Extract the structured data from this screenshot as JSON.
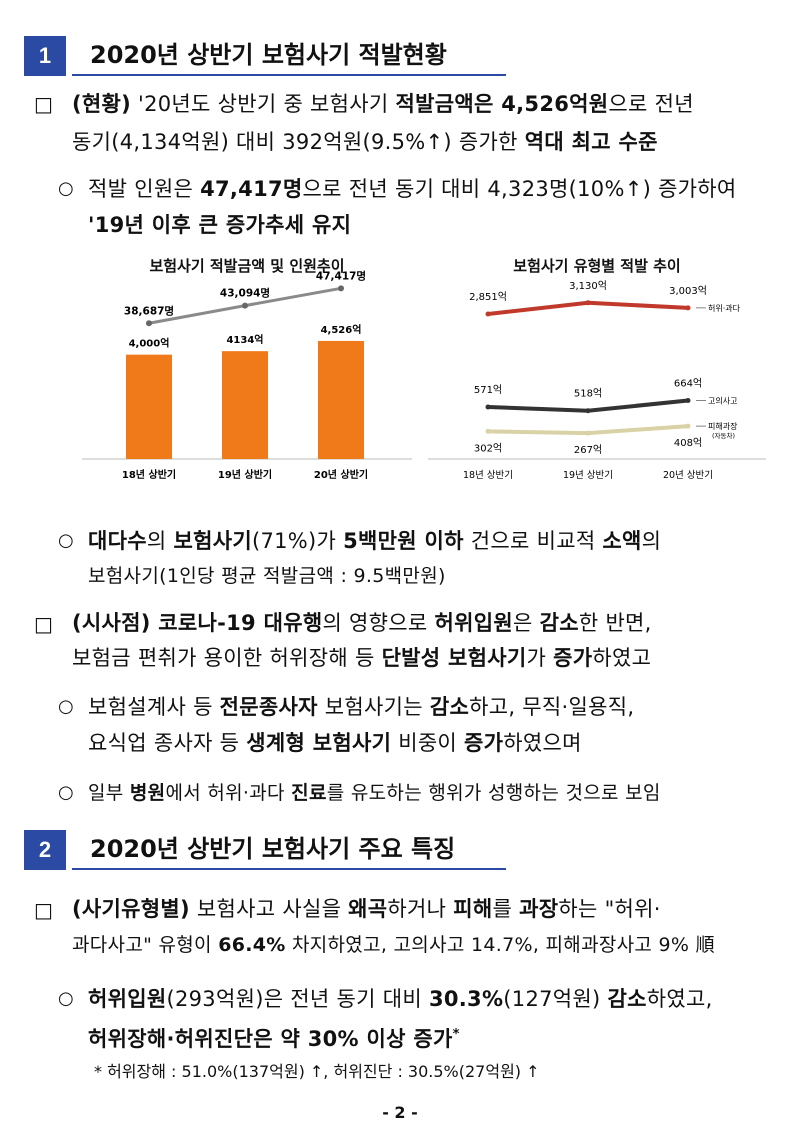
{
  "section1": {
    "number": "1",
    "title": "2020년 상반기 보험사기 적발현황",
    "p1_line1_lead": "(현황)",
    "p1_line1_a": " '20년도 상반기 중 보험사기 ",
    "p1_line1_b": "적발금액은 4,526억원",
    "p1_line1_c": "으로 전년",
    "p1_line2_a": "동기(4,134억원) 대비 392억원(9.5%↑) 증가한 ",
    "p1_line2_b": "역대 최고 수준",
    "b1_line1_a": "적발 인원은 ",
    "b1_line1_b": "47,417명",
    "b1_line1_c": "으로 전년 동기 대비 4,323명(10%↑) 증가하여",
    "b1_line2": "'19년 이후 큰 증가추세 유지",
    "b2_line1_a": "대다수",
    "b2_line1_b": "의 ",
    "b2_line1_c": "보험사기",
    "b2_line1_d": "(71%)가 ",
    "b2_line1_e": "5백만원 이하",
    "b2_line1_f": " 건으로 비교적 ",
    "b2_line1_g": "소액",
    "b2_line1_h": "의",
    "b2_line2": "보험사기(1인당 평균 적발금액 : 9.5백만원)",
    "p2_line1_lead": "(시사점)",
    "p2_line1_a": " 코로나-19 대유행",
    "p2_line1_b": "의 영향으로 ",
    "p2_line1_c": "허위입원",
    "p2_line1_d": "은 ",
    "p2_line1_e": "감소",
    "p2_line1_f": "한 반면,",
    "p2_line2_a": "보험금 편취가 용이한 허위장해 등 ",
    "p2_line2_b": "단발성 보험사기",
    "p2_line2_c": "가 ",
    "p2_line2_d": "증가",
    "p2_line2_e": "하였고",
    "b3_line1_a": "보험설계사 등 ",
    "b3_line1_b": "전문종사자",
    "b3_line1_c": " 보험사기는 ",
    "b3_line1_d": "감소",
    "b3_line1_e": "하고, 무직·일용직,",
    "b3_line2_a": "요식업 종사자 등 ",
    "b3_line2_b": "생계형 보험사기",
    "b3_line2_c": " 비중이 ",
    "b3_line2_d": "증가",
    "b3_line2_e": "하였으며",
    "b4_a": "일부 ",
    "b4_b": "병원",
    "b4_c": "에서 허위·과다 ",
    "b4_d": "진료",
    "b4_e": "를 유도하는 행위가 성행하는 것으로 보임"
  },
  "section2": {
    "number": "2",
    "title": "2020년 상반기 보험사기 주요 특징",
    "p1_line1_lead": "(사기유형별)",
    "p1_line1_a": " 보험사고 사실을 ",
    "p1_line1_b": "왜곡",
    "p1_line1_c": "하거나 ",
    "p1_line1_d": "피해",
    "p1_line1_e": "를 ",
    "p1_line1_f": "과장",
    "p1_line1_g": "하는 \"허위·",
    "p1_line2_a": "과다사고\" 유형이 ",
    "p1_line2_b": "66.4%",
    "p1_line2_c": " 차지하였고, 고의사고 14.7%, 피해과장사고 9% 順",
    "b1_line1_a": "허위입원",
    "b1_line1_b": "(293억원)은 전년 동기 대비 ",
    "b1_line1_c": "30.3%",
    "b1_line1_d": "(127억원) ",
    "b1_line1_e": "감소",
    "b1_line1_f": "하였고,",
    "b1_line2": "허위장해·허위진단은 약 30% 이상 증가",
    "b1_line2_sup": "*",
    "footnote": "* 허위장해 : 51.0%(137억원) ↑, 허위진단 : 30.5%(27억원) ↑"
  },
  "page_number": "- 2 -",
  "markers": {
    "square": "□",
    "circle": "○"
  },
  "colors": {
    "accent": "#2a4aa3",
    "bar": "#f07a1a",
    "line_gray": "#8a8a8a",
    "line_red": "#c0392b",
    "line_dark": "#333333",
    "line_beige": "#d9d2a6"
  },
  "chart_data": [
    {
      "type": "bar",
      "title": "보험사기 적발금액 및 인원추이",
      "categories": [
        "18년 상반기",
        "19년 상반기",
        "20년 상반기"
      ],
      "series": [
        {
          "values": [
            4000,
            4134,
            4526
          ],
          "labels": [
            "4,000억",
            "4134억",
            "4,526억"
          ]
        },
        {
          "values": [
            38687,
            43094,
            47417
          ],
          "labels": [
            "38,687명",
            "43,094명",
            "47,417명"
          ]
        }
      ]
    },
    {
      "type": "line",
      "title": "보험사기 유형별 적발 추이",
      "categories": [
        "18년 상반기",
        "19년 상반기",
        "20년 상반기"
      ],
      "series": [
        {
          "name": "허위·과다",
          "values": [
            2851,
            3130,
            3003
          ],
          "labels": [
            "2,851억",
            "3,130억",
            "3,003억"
          ]
        },
        {
          "name": "고의사고",
          "values": [
            571,
            518,
            664
          ],
          "labels": [
            "571억",
            "518억",
            "664억"
          ]
        },
        {
          "name": "피해과장",
          "subname": "(자동차)",
          "values": [
            302,
            267,
            408
          ],
          "labels": [
            "302억",
            "267억",
            "408억"
          ]
        }
      ]
    }
  ]
}
